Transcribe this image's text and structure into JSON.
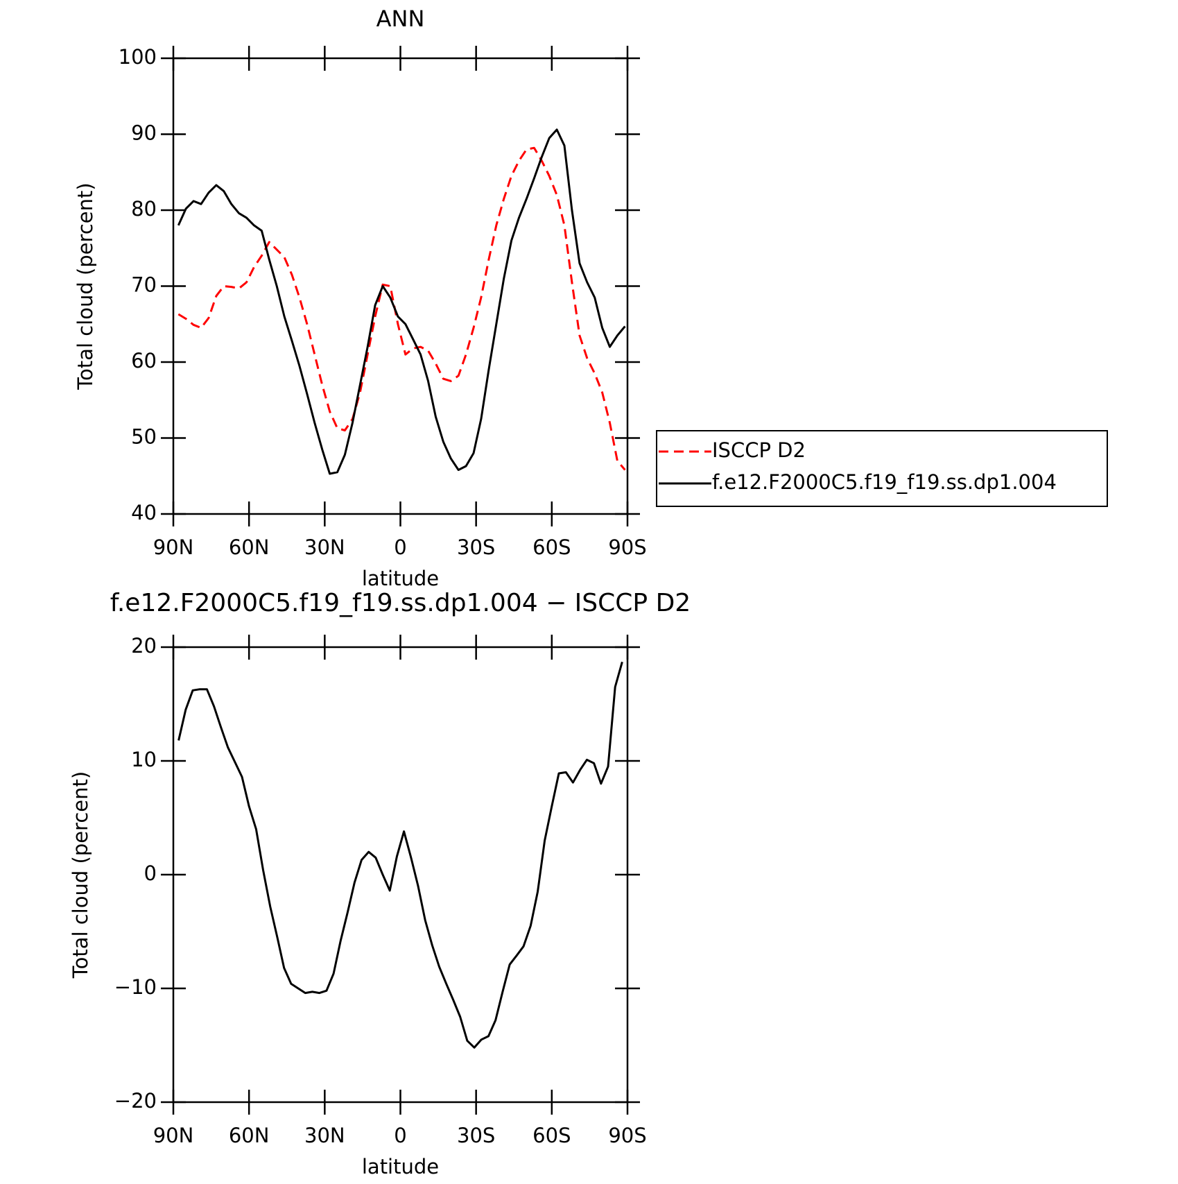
{
  "chart_data": [
    {
      "type": "line",
      "title": "ANN",
      "x_label": "latitude",
      "y_label": "Total cloud (percent)",
      "x": [
        88,
        85,
        82,
        79,
        76,
        73,
        70,
        67,
        64,
        61,
        58,
        55,
        52,
        49,
        46,
        43,
        40,
        37,
        34,
        31,
        28,
        25,
        22,
        19,
        16,
        13,
        10,
        7,
        4,
        1,
        -2,
        -5,
        -8,
        -11,
        -14,
        -17,
        -20,
        -23,
        -26,
        -29,
        -32,
        -35,
        -38,
        -41,
        -44,
        -47,
        -50,
        -53,
        -56,
        -59,
        -62,
        -65,
        -68,
        -71,
        -74,
        -77,
        -80,
        -83,
        -86,
        -89
      ],
      "series": [
        {
          "name": "ISCCP D2",
          "color": "#ff0000",
          "dash": true,
          "values": [
            66.3,
            65.7,
            64.9,
            64.5,
            65.8,
            68.7,
            70.0,
            69.9,
            69.7,
            70.5,
            72.5,
            74.0,
            75.8,
            74.8,
            73.8,
            71.5,
            68.5,
            65.0,
            61.0,
            57.0,
            53.5,
            51.3,
            51.0,
            52.5,
            56.0,
            61.0,
            66.0,
            70.2,
            70.0,
            65.0,
            61.0,
            61.8,
            62.0,
            61.5,
            59.8,
            57.8,
            57.5,
            58.2,
            61.0,
            64.5,
            68.5,
            73.5,
            78.0,
            81.5,
            84.5,
            86.5,
            88.0,
            88.2,
            86.5,
            84.5,
            82.0,
            78.0,
            70.5,
            63.5,
            60.5,
            58.5,
            56.0,
            52.0,
            47.0,
            45.8
          ]
        },
        {
          "name": "f.e12.F2000C5.f19_f19.ss.dp1.004",
          "color": "#000000",
          "dash": false,
          "values": [
            78.0,
            80.2,
            81.2,
            80.8,
            82.3,
            83.3,
            82.5,
            80.8,
            79.6,
            79.0,
            78.0,
            77.3,
            73.5,
            70.0,
            66.0,
            62.8,
            59.5,
            55.8,
            52.0,
            48.5,
            45.3,
            45.5,
            47.8,
            52.0,
            57.0,
            62.0,
            67.5,
            70.0,
            68.5,
            66.0,
            65.0,
            63.0,
            61.0,
            57.5,
            52.8,
            49.5,
            47.3,
            45.8,
            46.3,
            48.0,
            52.5,
            59.0,
            65.0,
            71.0,
            76.0,
            79.0,
            81.5,
            84.2,
            87.0,
            89.5,
            90.6,
            88.5,
            80.0,
            73.0,
            70.5,
            68.5,
            64.5,
            62.0,
            63.5,
            64.7
          ]
        }
      ],
      "xlim": [
        90,
        -90
      ],
      "xticks": [
        {
          "value": 90,
          "label": "90N"
        },
        {
          "value": 60,
          "label": "60N"
        },
        {
          "value": 30,
          "label": "30N"
        },
        0,
        {
          "value": -30,
          "label": "30S"
        },
        {
          "value": -60,
          "label": "60S"
        },
        {
          "value": -90,
          "label": "90S"
        }
      ],
      "ylim": [
        40,
        100
      ],
      "yticks": [
        40,
        50,
        60,
        70,
        80,
        90,
        100
      ],
      "legend": "right"
    },
    {
      "type": "line",
      "title": "f.e12.F2000C5.f19_f19.ss.dp1.004 − ISCCP D2",
      "x_label": "latitude",
      "y_label": "Total cloud (percent)",
      "x": [
        87.9,
        85.1,
        82.3,
        79.5,
        76.7,
        73.9,
        71.2,
        68.4,
        65.6,
        62.8,
        60.0,
        57.2,
        54.4,
        51.6,
        48.8,
        46.1,
        43.3,
        40.5,
        37.7,
        34.9,
        32.1,
        29.3,
        26.5,
        23.7,
        20.9,
        18.2,
        15.4,
        12.6,
        9.8,
        7.0,
        4.2,
        1.4,
        -1.4,
        -4.2,
        -7.0,
        -9.8,
        -12.6,
        -15.4,
        -18.2,
        -20.9,
        -23.7,
        -26.5,
        -29.3,
        -32.1,
        -34.9,
        -37.7,
        -40.5,
        -43.3,
        -46.1,
        -48.8,
        -51.6,
        -54.4,
        -57.2,
        -60.0,
        -62.8,
        -65.6,
        -68.4,
        -71.2,
        -73.9,
        -76.7,
        -79.5,
        -82.3,
        -85.1,
        -87.9
      ],
      "series": [
        {
          "color": "#000000",
          "dash": false,
          "values": [
            11.8,
            14.5,
            16.2,
            16.3,
            16.3,
            14.8,
            13.0,
            11.2,
            9.9,
            8.6,
            6.0,
            4.0,
            0.4,
            -2.8,
            -5.5,
            -8.2,
            -9.6,
            -10.0,
            -10.4,
            -10.3,
            -10.4,
            -10.2,
            -8.7,
            -5.8,
            -3.3,
            -0.7,
            1.3,
            2.0,
            1.5,
            0.0,
            -1.4,
            1.6,
            3.8,
            1.5,
            -1.0,
            -4.0,
            -6.2,
            -8.1,
            -9.6,
            -11.0,
            -12.5,
            -14.6,
            -15.2,
            -14.5,
            -14.2,
            -12.8,
            -10.3,
            -7.9,
            -7.1,
            -6.3,
            -4.5,
            -1.5,
            3.0,
            6.0,
            8.9,
            9.0,
            8.1,
            9.2,
            10.1,
            9.8,
            8.0,
            9.5,
            16.5,
            18.7
          ]
        }
      ],
      "xlim": [
        90,
        -90
      ],
      "xticks": [
        {
          "value": 90,
          "label": "90N"
        },
        {
          "value": 60,
          "label": "60N"
        },
        {
          "value": 30,
          "label": "30N"
        },
        0,
        {
          "value": -30,
          "label": "30S"
        },
        {
          "value": -60,
          "label": "60S"
        },
        {
          "value": -90,
          "label": "90S"
        }
      ],
      "ylim": [
        -20,
        20
      ],
      "yticks": [
        {
          "value": -20,
          "label": "−20"
        },
        {
          "value": -10,
          "label": "−10"
        },
        0,
        10,
        20
      ]
    }
  ]
}
